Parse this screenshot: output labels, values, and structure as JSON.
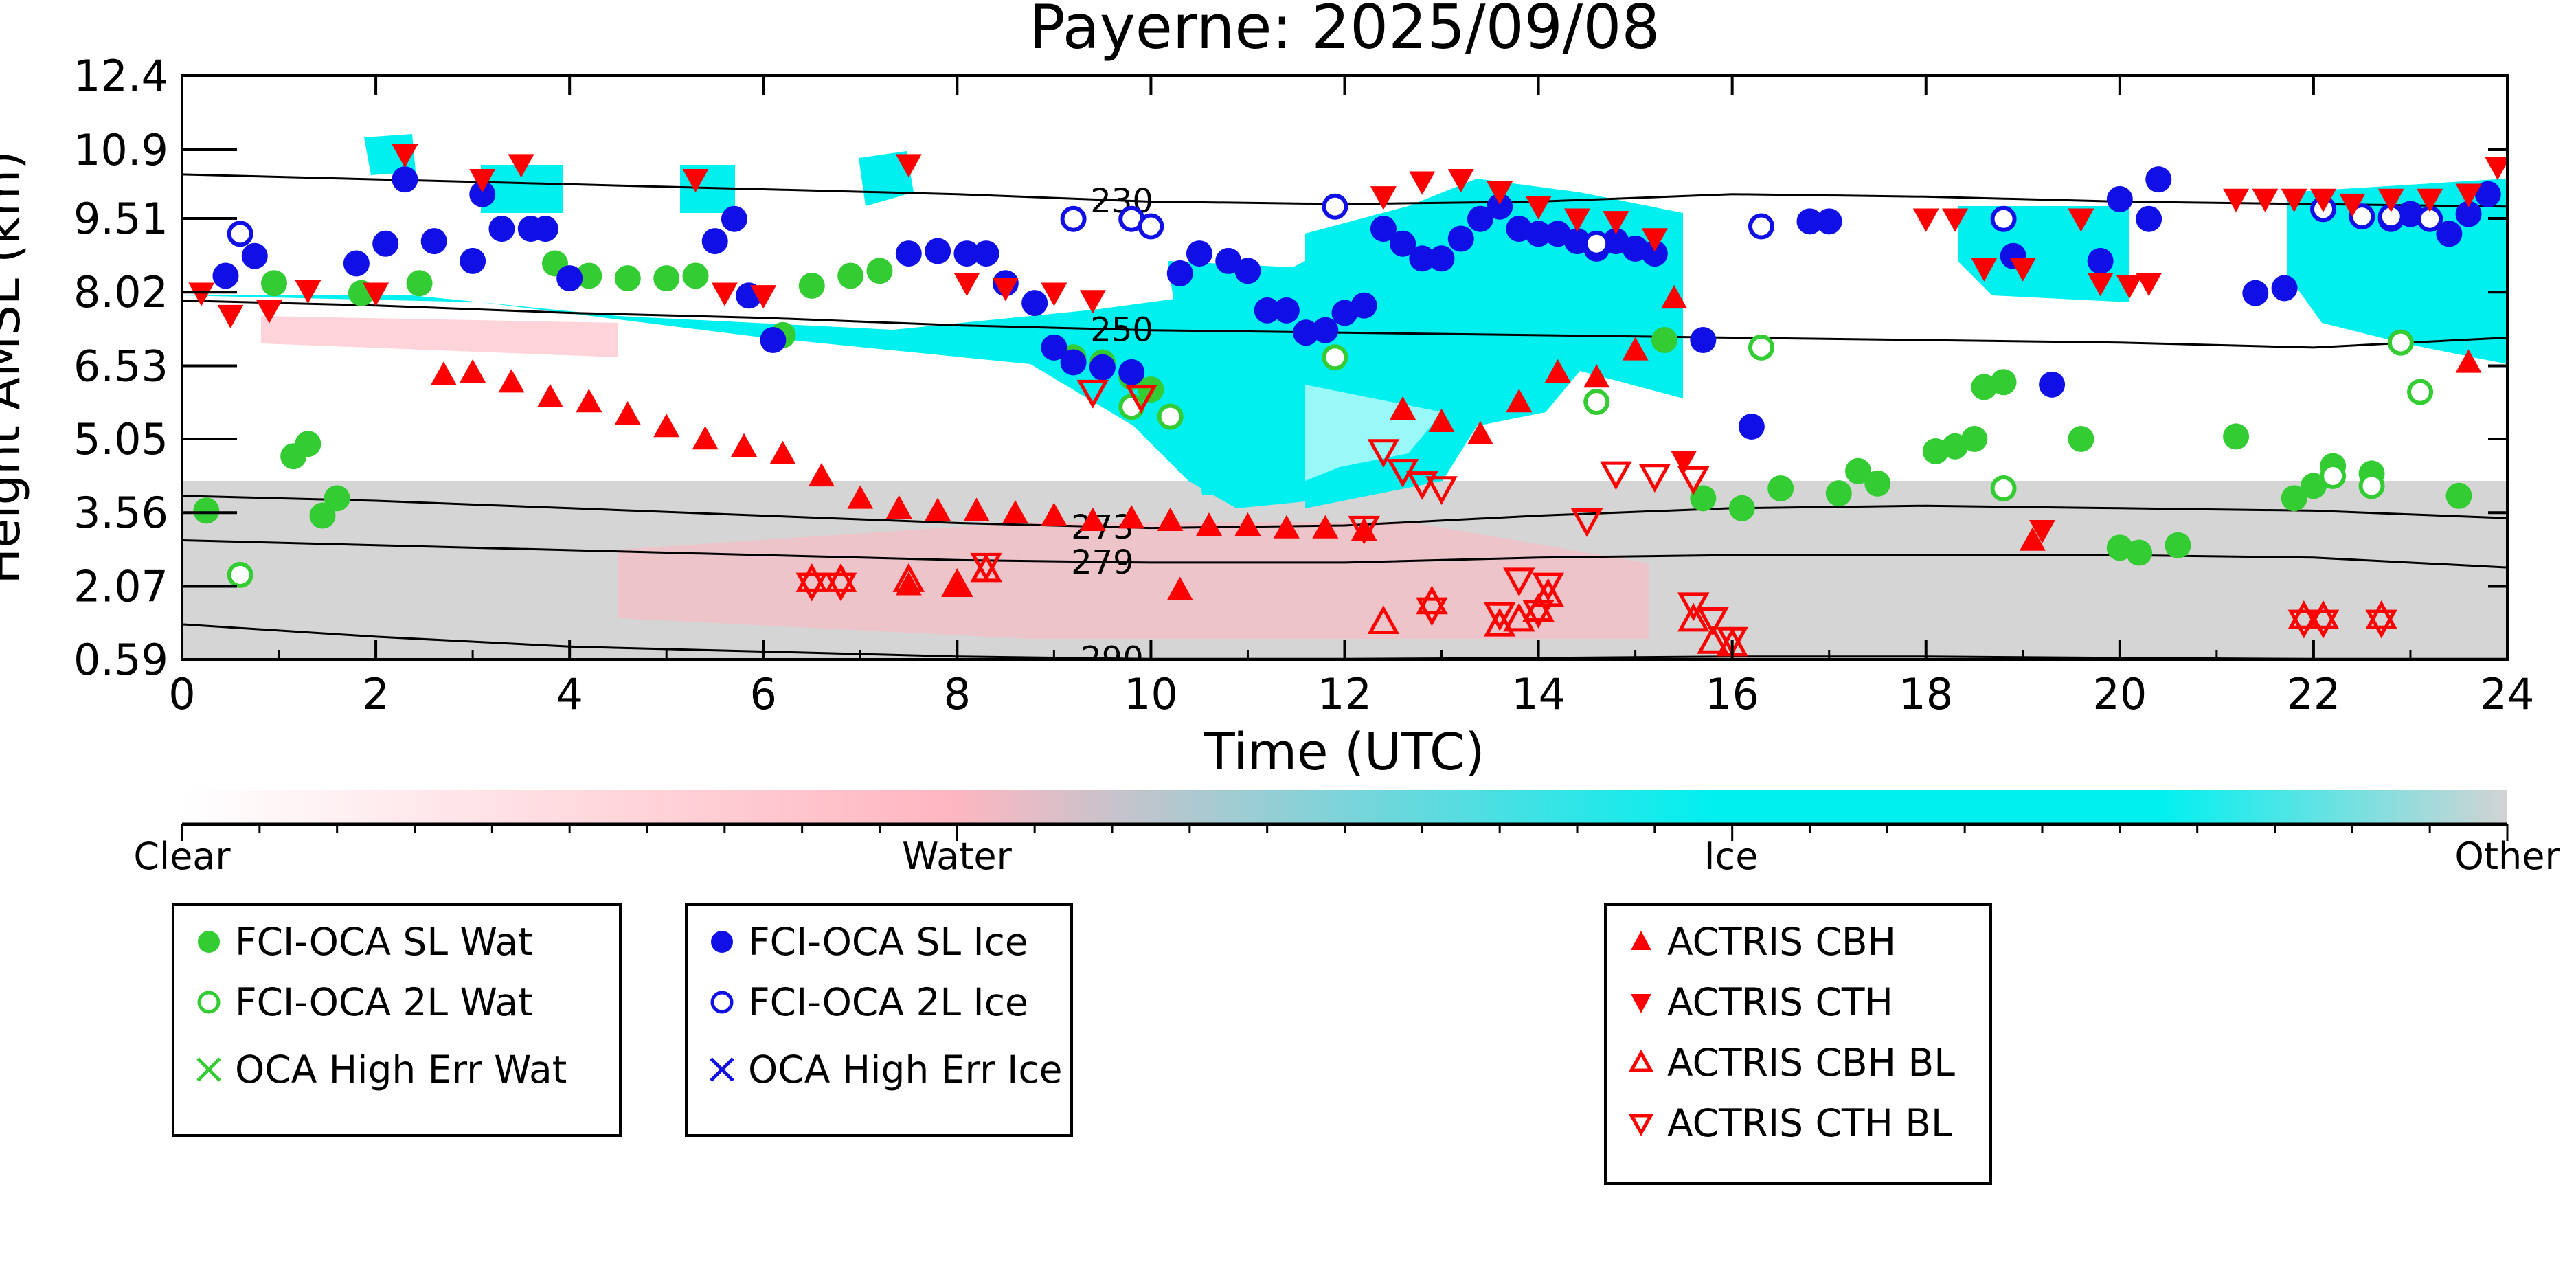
{
  "colors": {
    "water_retrieval": "#33cc33",
    "ice_retrieval": "#1010e6",
    "actris": "#ff0000",
    "colorbar_clear": "#ffffff",
    "colorbar_water": "#ffb6c1",
    "colorbar_ice": "#00f0f0",
    "colorbar_other": "#d3d3d3",
    "contour": "#000000"
  },
  "chart_data": {
    "type": "scatter",
    "title": "Payerne: 2025/09/08",
    "xlabel": "Time (UTC)",
    "ylabel": "Height AMSL (km)",
    "xlim": [
      0,
      24
    ],
    "ylim": [
      0.59,
      12.4
    ],
    "xticks": [
      "0",
      "2",
      "4",
      "6",
      "8",
      "10",
      "12",
      "14",
      "16",
      "18",
      "20",
      "22",
      "24"
    ],
    "yticks": [
      "0.59",
      "2.07",
      "3.56",
      "5.05",
      "6.53",
      "8.02",
      "9.51",
      "10.9",
      "12.4"
    ],
    "colorbar": {
      "labels": [
        "Clear",
        "Water",
        "Ice",
        "Other"
      ]
    },
    "temperature_contours": [
      {
        "label": "230",
        "x": [
          0,
          2,
          4,
          6,
          8,
          10,
          12,
          14,
          16,
          18,
          20,
          22,
          24
        ],
        "y": [
          10.4,
          10.3,
          10.2,
          10.1,
          10.0,
          9.85,
          9.8,
          9.85,
          10.0,
          9.95,
          9.85,
          9.8,
          9.75
        ]
      },
      {
        "label": "250",
        "x": [
          0,
          2,
          4,
          6,
          8,
          10,
          12,
          14,
          16,
          18,
          20,
          22,
          24
        ],
        "y": [
          7.85,
          7.75,
          7.6,
          7.5,
          7.35,
          7.25,
          7.2,
          7.15,
          7.1,
          7.05,
          7.0,
          6.9,
          7.1
        ]
      },
      {
        "label": "273",
        "x": [
          0,
          2,
          4,
          6,
          8,
          10,
          12,
          14,
          16,
          18,
          20,
          22,
          24
        ],
        "y": [
          3.9,
          3.8,
          3.65,
          3.5,
          3.35,
          3.25,
          3.3,
          3.5,
          3.65,
          3.7,
          3.65,
          3.6,
          3.45
        ]
      },
      {
        "label": "279",
        "x": [
          0,
          2,
          4,
          6,
          8,
          10,
          12,
          14,
          16,
          18,
          20,
          22,
          24
        ],
        "y": [
          3.0,
          2.9,
          2.8,
          2.7,
          2.6,
          2.55,
          2.55,
          2.65,
          2.7,
          2.7,
          2.7,
          2.65,
          2.45
        ]
      },
      {
        "label": "290",
        "x": [
          0,
          2,
          4,
          6,
          8,
          10,
          12,
          14,
          16,
          18,
          20,
          22,
          24
        ],
        "y": [
          1.3,
          1.05,
          0.85,
          0.75,
          0.65,
          0.6,
          0.6,
          0.62,
          0.65,
          0.65,
          0.62,
          0.6,
          0.6
        ]
      }
    ],
    "series": [
      {
        "name": "FCI-OCA SL Wat",
        "marker": "filled-circle",
        "color": "#33cc33",
        "points": [
          [
            0.25,
            3.6
          ],
          [
            0.95,
            8.2
          ],
          [
            1.15,
            4.7
          ],
          [
            1.3,
            4.95
          ],
          [
            1.45,
            3.5
          ],
          [
            1.6,
            3.85
          ],
          [
            1.85,
            8.0
          ],
          [
            2.45,
            8.2
          ],
          [
            3.85,
            8.6
          ],
          [
            4.2,
            8.35
          ],
          [
            4.6,
            8.3
          ],
          [
            5.0,
            8.3
          ],
          [
            5.3,
            8.35
          ],
          [
            6.2,
            7.15
          ],
          [
            6.5,
            8.15
          ],
          [
            6.9,
            8.35
          ],
          [
            7.2,
            8.45
          ],
          [
            9.2,
            6.7
          ],
          [
            9.5,
            6.6
          ],
          [
            9.8,
            6.3
          ],
          [
            10.0,
            6.05
          ],
          [
            15.3,
            7.05
          ],
          [
            15.7,
            3.85
          ],
          [
            16.1,
            3.65
          ],
          [
            16.5,
            4.05
          ],
          [
            17.1,
            3.95
          ],
          [
            17.3,
            4.4
          ],
          [
            17.5,
            4.15
          ],
          [
            18.1,
            4.8
          ],
          [
            18.3,
            4.9
          ],
          [
            18.5,
            5.05
          ],
          [
            18.6,
            6.1
          ],
          [
            18.8,
            6.2
          ],
          [
            19.6,
            5.05
          ],
          [
            20.0,
            2.85
          ],
          [
            20.2,
            2.75
          ],
          [
            20.6,
            2.9
          ],
          [
            21.2,
            5.1
          ],
          [
            21.8,
            3.85
          ],
          [
            22.0,
            4.1
          ],
          [
            22.2,
            4.5
          ],
          [
            22.6,
            4.35
          ],
          [
            23.5,
            3.9
          ]
        ]
      },
      {
        "name": "FCI-OCA 2L Wat",
        "marker": "open-circle",
        "color": "#33cc33",
        "points": [
          [
            0.6,
            2.3
          ],
          [
            9.8,
            5.7
          ],
          [
            10.2,
            5.5
          ],
          [
            11.9,
            6.7
          ],
          [
            14.6,
            5.8
          ],
          [
            16.3,
            6.9
          ],
          [
            18.8,
            4.05
          ],
          [
            22.2,
            4.3
          ],
          [
            22.6,
            4.1
          ],
          [
            22.9,
            7.0
          ],
          [
            23.1,
            6.0
          ]
        ]
      },
      {
        "name": "OCA High Err Wat",
        "marker": "x",
        "color": "#33cc33",
        "points": []
      },
      {
        "name": "FCI-OCA SL Ice",
        "marker": "filled-circle",
        "color": "#1010e6",
        "points": [
          [
            0.45,
            8.35
          ],
          [
            0.75,
            8.75
          ],
          [
            1.8,
            8.6
          ],
          [
            2.1,
            9.0
          ],
          [
            2.3,
            10.3
          ],
          [
            2.6,
            9.05
          ],
          [
            3.0,
            8.65
          ],
          [
            3.1,
            10.0
          ],
          [
            3.3,
            9.3
          ],
          [
            3.6,
            9.3
          ],
          [
            3.75,
            9.3
          ],
          [
            4.0,
            8.3
          ],
          [
            5.5,
            9.05
          ],
          [
            5.7,
            9.5
          ],
          [
            5.85,
            7.95
          ],
          [
            6.1,
            7.05
          ],
          [
            7.5,
            8.8
          ],
          [
            7.8,
            8.85
          ],
          [
            8.1,
            8.8
          ],
          [
            8.3,
            8.8
          ],
          [
            8.5,
            8.2
          ],
          [
            8.8,
            7.8
          ],
          [
            9.0,
            6.9
          ],
          [
            9.2,
            6.6
          ],
          [
            9.5,
            6.5
          ],
          [
            9.8,
            6.4
          ],
          [
            10.3,
            8.4
          ],
          [
            10.5,
            8.8
          ],
          [
            10.8,
            8.65
          ],
          [
            11.0,
            8.45
          ],
          [
            11.2,
            7.65
          ],
          [
            11.4,
            7.65
          ],
          [
            11.6,
            7.2
          ],
          [
            11.8,
            7.25
          ],
          [
            12.0,
            7.6
          ],
          [
            12.2,
            7.75
          ],
          [
            12.4,
            9.3
          ],
          [
            12.6,
            9.0
          ],
          [
            12.8,
            8.7
          ],
          [
            13.0,
            8.7
          ],
          [
            13.2,
            9.1
          ],
          [
            13.4,
            9.5
          ],
          [
            13.6,
            9.75
          ],
          [
            13.8,
            9.3
          ],
          [
            14.0,
            9.2
          ],
          [
            14.2,
            9.2
          ],
          [
            14.4,
            9.05
          ],
          [
            14.6,
            8.9
          ],
          [
            14.8,
            9.05
          ],
          [
            15.0,
            8.9
          ],
          [
            15.2,
            8.8
          ],
          [
            15.7,
            7.05
          ],
          [
            16.2,
            5.3
          ],
          [
            16.8,
            9.45
          ],
          [
            17.0,
            9.45
          ],
          [
            18.9,
            8.75
          ],
          [
            19.3,
            6.15
          ],
          [
            19.8,
            8.65
          ],
          [
            20.0,
            9.9
          ],
          [
            20.3,
            9.5
          ],
          [
            20.4,
            10.3
          ],
          [
            21.4,
            8.0
          ],
          [
            21.7,
            8.1
          ],
          [
            22.8,
            9.5
          ],
          [
            23.0,
            9.6
          ],
          [
            23.4,
            9.2
          ],
          [
            23.6,
            9.6
          ],
          [
            23.8,
            10.0
          ]
        ]
      },
      {
        "name": "FCI-OCA 2L Ice",
        "marker": "open-circle",
        "color": "#1010e6",
        "points": [
          [
            0.6,
            9.2
          ],
          [
            9.2,
            9.5
          ],
          [
            9.8,
            9.5
          ],
          [
            10.0,
            9.35
          ],
          [
            11.9,
            9.75
          ],
          [
            14.6,
            9.0
          ],
          [
            16.3,
            9.35
          ],
          [
            18.8,
            9.5
          ],
          [
            22.1,
            9.7
          ],
          [
            22.5,
            9.55
          ],
          [
            22.8,
            9.55
          ],
          [
            23.2,
            9.5
          ]
        ]
      },
      {
        "name": "OCA High Err Ice",
        "marker": "x",
        "color": "#1010e6",
        "points": []
      },
      {
        "name": "ACTRIS CBH",
        "marker": "filled-triangle-up",
        "color": "#ff0000",
        "points": [
          [
            2.7,
            6.35
          ],
          [
            3.0,
            6.4
          ],
          [
            3.4,
            6.2
          ],
          [
            3.8,
            5.9
          ],
          [
            4.2,
            5.8
          ],
          [
            4.6,
            5.55
          ],
          [
            5.0,
            5.3
          ],
          [
            5.4,
            5.05
          ],
          [
            5.8,
            4.9
          ],
          [
            6.2,
            4.75
          ],
          [
            6.6,
            4.3
          ],
          [
            7.0,
            3.85
          ],
          [
            7.4,
            3.65
          ],
          [
            7.8,
            3.6
          ],
          [
            8.2,
            3.6
          ],
          [
            8.6,
            3.55
          ],
          [
            9.0,
            3.5
          ],
          [
            9.4,
            3.4
          ],
          [
            9.8,
            3.45
          ],
          [
            10.2,
            3.4
          ],
          [
            10.6,
            3.3
          ],
          [
            11.0,
            3.3
          ],
          [
            11.4,
            3.25
          ],
          [
            11.8,
            3.25
          ],
          [
            12.2,
            3.2
          ],
          [
            12.6,
            5.65
          ],
          [
            13.0,
            5.4
          ],
          [
            13.4,
            5.15
          ],
          [
            13.8,
            5.8
          ],
          [
            14.2,
            6.4
          ],
          [
            14.6,
            6.3
          ],
          [
            15.0,
            6.85
          ],
          [
            15.4,
            7.9
          ],
          [
            7.5,
            2.1
          ],
          [
            8.0,
            2.1
          ],
          [
            10.3,
            2.0
          ],
          [
            19.1,
            3.0
          ],
          [
            23.6,
            6.6
          ]
        ]
      },
      {
        "name": "ACTRIS CTH",
        "marker": "filled-triangle-down",
        "color": "#ff0000",
        "points": [
          [
            0.2,
            8.0
          ],
          [
            0.5,
            7.55
          ],
          [
            0.9,
            7.65
          ],
          [
            1.3,
            8.05
          ],
          [
            2.0,
            8.0
          ],
          [
            2.3,
            10.8
          ],
          [
            3.1,
            10.3
          ],
          [
            3.5,
            10.6
          ],
          [
            5.3,
            10.3
          ],
          [
            5.6,
            8.0
          ],
          [
            6.0,
            7.95
          ],
          [
            7.5,
            10.6
          ],
          [
            8.1,
            8.2
          ],
          [
            8.5,
            8.1
          ],
          [
            9.0,
            8.0
          ],
          [
            9.4,
            7.85
          ],
          [
            12.4,
            9.95
          ],
          [
            12.8,
            10.25
          ],
          [
            13.2,
            10.3
          ],
          [
            13.6,
            10.05
          ],
          [
            14.0,
            9.75
          ],
          [
            14.4,
            9.5
          ],
          [
            14.8,
            9.45
          ],
          [
            15.2,
            9.1
          ],
          [
            15.5,
            4.6
          ],
          [
            18.0,
            9.5
          ],
          [
            18.3,
            9.5
          ],
          [
            18.6,
            8.5
          ],
          [
            19.0,
            8.5
          ],
          [
            19.2,
            3.2
          ],
          [
            19.6,
            9.5
          ],
          [
            19.8,
            8.2
          ],
          [
            20.1,
            8.15
          ],
          [
            20.3,
            8.2
          ],
          [
            21.2,
            9.9
          ],
          [
            21.5,
            9.9
          ],
          [
            21.8,
            9.9
          ],
          [
            22.1,
            9.9
          ],
          [
            22.4,
            9.8
          ],
          [
            22.8,
            9.9
          ],
          [
            23.2,
            9.9
          ],
          [
            23.6,
            10.0
          ],
          [
            23.9,
            10.55
          ]
        ]
      },
      {
        "name": "ACTRIS CBH BL",
        "marker": "open-triangle-up",
        "color": "#ff0000",
        "points": [
          [
            6.5,
            2.2
          ],
          [
            6.8,
            2.2
          ],
          [
            7.5,
            2.2
          ],
          [
            8.0,
            2.1
          ],
          [
            8.3,
            2.4
          ],
          [
            12.4,
            1.35
          ],
          [
            12.9,
            1.75
          ],
          [
            13.6,
            1.3
          ],
          [
            13.8,
            1.4
          ],
          [
            14.0,
            1.6
          ],
          [
            14.1,
            1.9
          ],
          [
            15.6,
            1.4
          ],
          [
            15.8,
            0.95
          ],
          [
            16.0,
            0.9
          ],
          [
            21.9,
            1.45
          ],
          [
            22.1,
            1.45
          ],
          [
            22.7,
            1.45
          ]
        ]
      },
      {
        "name": "ACTRIS CTH BL",
        "marker": "open-triangle-down",
        "color": "#ff0000",
        "points": [
          [
            6.5,
            2.1
          ],
          [
            6.8,
            2.1
          ],
          [
            8.3,
            2.5
          ],
          [
            9.4,
            6.0
          ],
          [
            9.9,
            5.9
          ],
          [
            12.2,
            3.25
          ],
          [
            12.4,
            4.8
          ],
          [
            12.6,
            4.4
          ],
          [
            12.8,
            4.15
          ],
          [
            13.0,
            4.05
          ],
          [
            12.9,
            1.6
          ],
          [
            13.6,
            1.5
          ],
          [
            13.8,
            2.2
          ],
          [
            14.0,
            1.55
          ],
          [
            14.1,
            2.1
          ],
          [
            14.5,
            3.4
          ],
          [
            15.6,
            1.7
          ],
          [
            15.8,
            1.4
          ],
          [
            16.0,
            1.0
          ],
          [
            14.8,
            4.35
          ],
          [
            15.2,
            4.3
          ],
          [
            15.6,
            4.25
          ],
          [
            21.9,
            1.35
          ],
          [
            22.1,
            1.35
          ],
          [
            22.7,
            1.35
          ]
        ]
      }
    ]
  }
}
